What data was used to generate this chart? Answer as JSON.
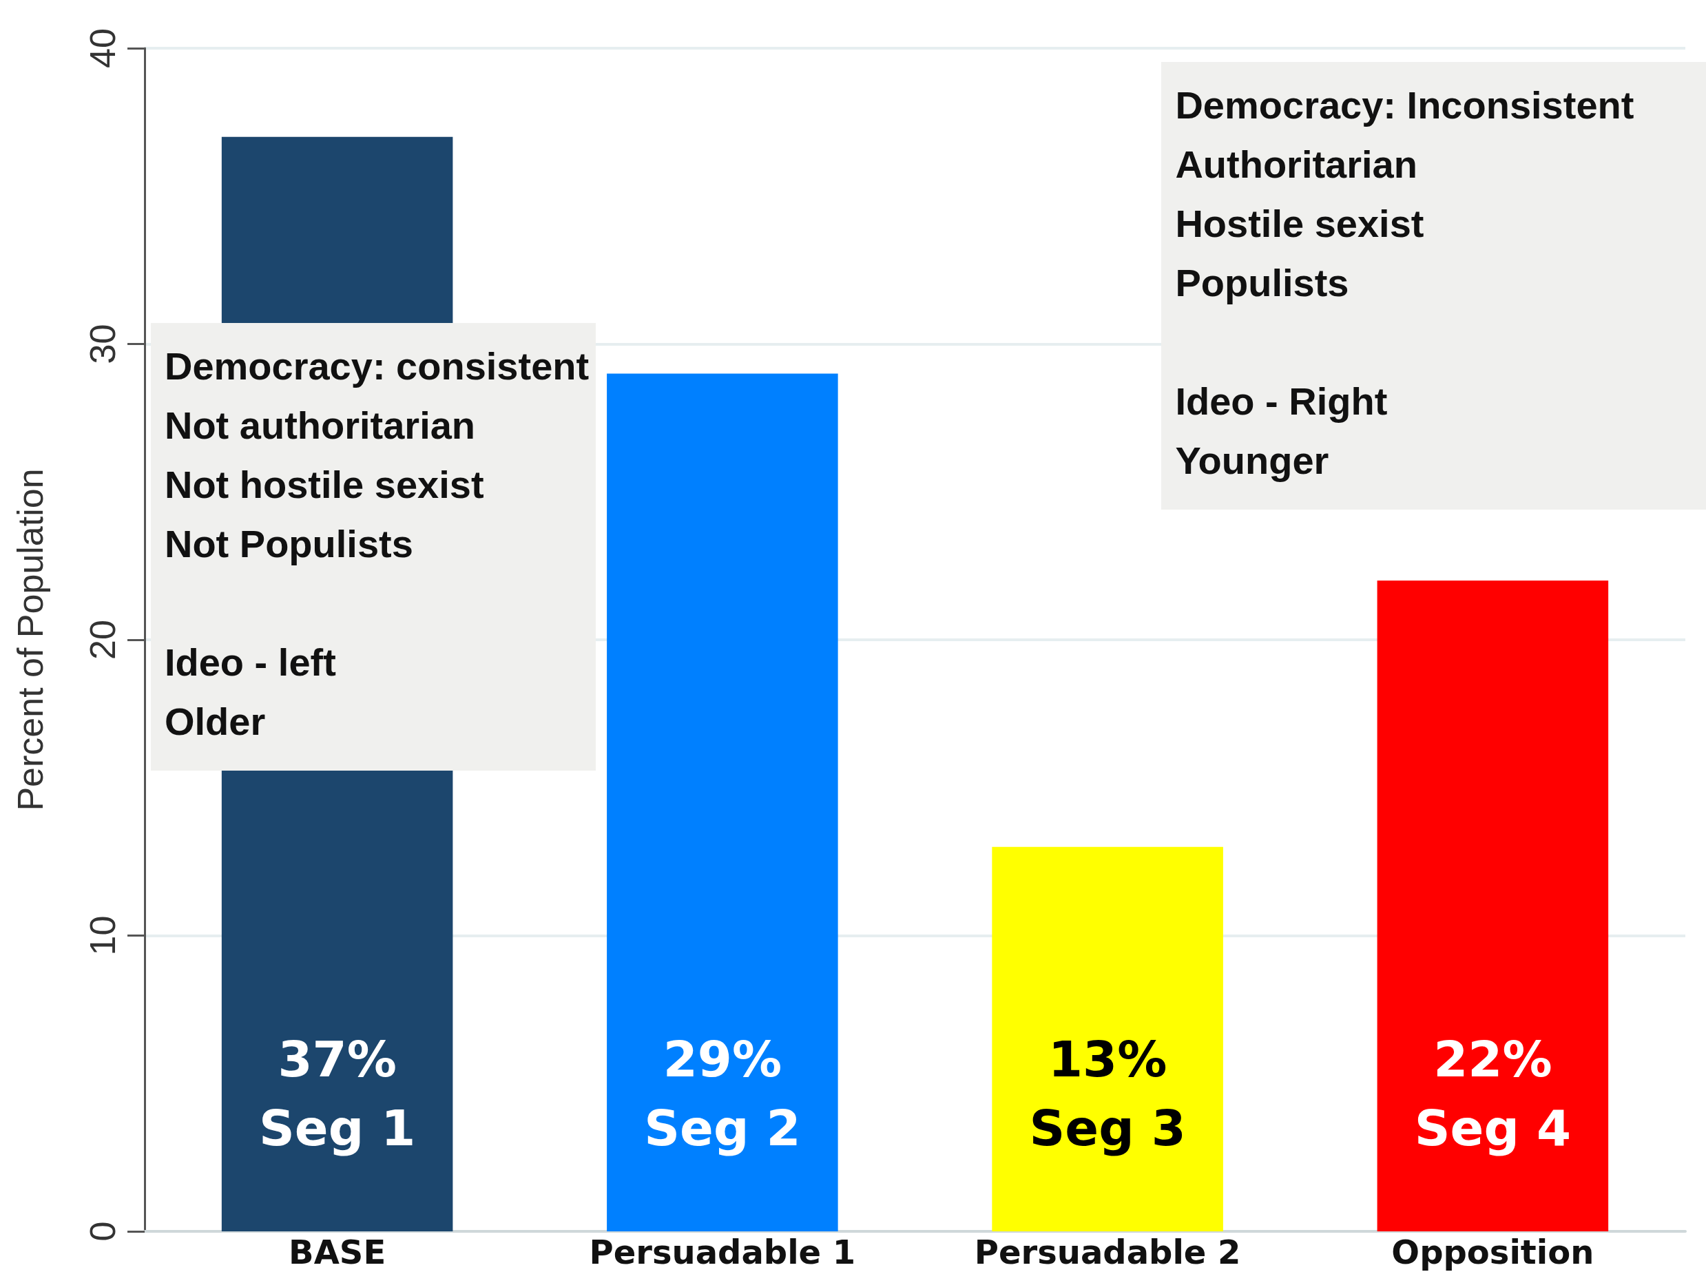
{
  "chart_data": {
    "type": "bar",
    "ylabel": "Percent of Population",
    "categories": [
      "BASE",
      "Persuadable 1",
      "Persuadable 2",
      "Opposition"
    ],
    "values": [
      37,
      29,
      13,
      22
    ],
    "colors": [
      "#1c466d",
      "#0080ff",
      "#ffff00",
      "#ff0000"
    ],
    "value_labels": [
      "37%\nSeg 1",
      "29%\nSeg 2",
      "13%\nSeg 3",
      "22%\nSeg 4"
    ],
    "ylim": [
      0,
      40
    ],
    "yticks": [
      0,
      10,
      20,
      30,
      40
    ],
    "grid": "y",
    "annotations": [
      "Democracy: consistent\nNot authoritarian\nNot hostile sexist\nNot Populists\n\nIdeo - left\nOlder",
      "Democracy: Inconsistent\nAuthoritarian\nHostile sexist\nPopulists\n\nIdeo - Right\nYounger"
    ]
  }
}
